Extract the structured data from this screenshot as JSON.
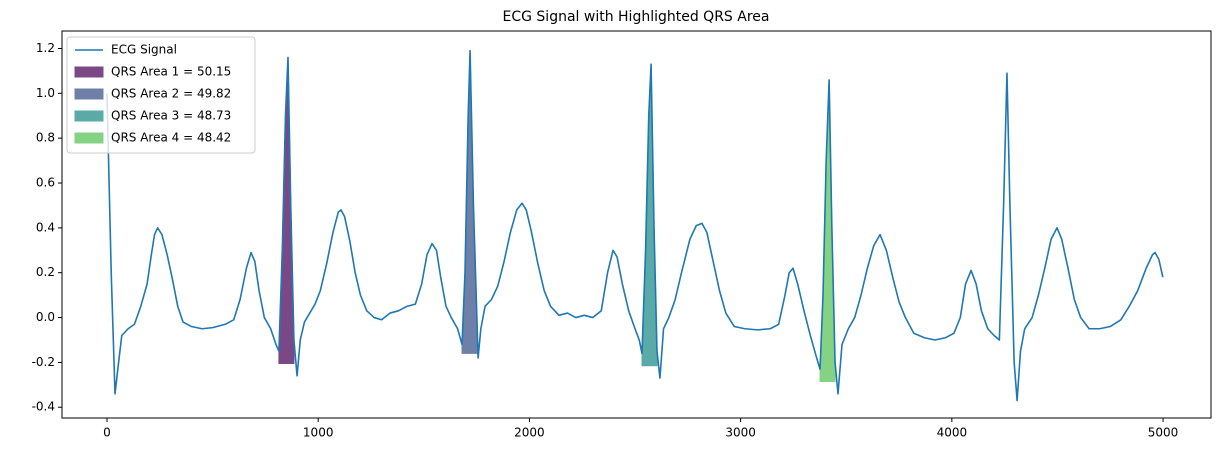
{
  "chart_data": {
    "type": "line",
    "title": "ECG Signal with Highlighted QRS Area",
    "xlim": [
      -213,
      5227
    ],
    "ylim": [
      -0.448,
      1.278
    ],
    "xticks": [
      0,
      1000,
      2000,
      3000,
      4000,
      5000
    ],
    "yticks": [
      -0.4,
      -0.2,
      {
        "value": 0,
        "label": "0.0"
      },
      0.2,
      0.4,
      0.6,
      0.8,
      {
        "value": 1,
        "label": "1.0"
      },
      1.2
    ],
    "grid": false,
    "legend": "upper left",
    "series": [
      {
        "name": "ECG Signal",
        "color": "#1f77b4",
        "x": [
          0,
          20,
          38,
          55,
          70,
          100,
          130,
          160,
          190,
          210,
          225,
          240,
          260,
          285,
          310,
          335,
          360,
          400,
          450,
          500,
          560,
          600,
          630,
          660,
          682,
          700,
          720,
          745,
          775,
          800,
          814,
          830,
          845,
          857,
          870,
          885,
          900,
          915,
          935,
          960,
          985,
          1010,
          1040,
          1070,
          1095,
          1108,
          1125,
          1150,
          1175,
          1200,
          1230,
          1265,
          1300,
          1340,
          1380,
          1420,
          1460,
          1490,
          1515,
          1539,
          1560,
          1580,
          1605,
          1630,
          1660,
          1681,
          1695,
          1710,
          1719,
          1735,
          1757,
          1770,
          1790,
          1820,
          1850,
          1880,
          1910,
          1940,
          1965,
          1985,
          2010,
          2040,
          2070,
          2100,
          2140,
          2180,
          2220,
          2260,
          2300,
          2340,
          2370,
          2396,
          2415,
          2440,
          2470,
          2500,
          2520,
          2533,
          2550,
          2565,
          2576,
          2590,
          2604,
          2618,
          2635,
          2660,
          2690,
          2720,
          2760,
          2790,
          2817,
          2840,
          2870,
          2900,
          2930,
          2970,
          3020,
          3080,
          3140,
          3180,
          3210,
          3230,
          3248,
          3270,
          3300,
          3330,
          3360,
          3376,
          3390,
          3405,
          3419,
          3432,
          3447,
          3461,
          3480,
          3510,
          3540,
          3570,
          3600,
          3630,
          3660,
          3690,
          3720,
          3750,
          3780,
          3820,
          3870,
          3920,
          3970,
          4010,
          4040,
          4065,
          4091,
          4115,
          4140,
          4170,
          4200,
          4225,
          4245,
          4261,
          4275,
          4295,
          4309,
          4325,
          4345,
          4380,
          4410,
          4440,
          4470,
          4498,
          4520,
          4550,
          4580,
          4610,
          4650,
          4700,
          4750,
          4800,
          4840,
          4880,
          4920,
          4950,
          4962,
          4980,
          4999
        ],
        "values": [
          1.0,
          0.2,
          -0.34,
          -0.2,
          -0.08,
          -0.05,
          -0.03,
          0.05,
          0.15,
          0.28,
          0.37,
          0.4,
          0.37,
          0.28,
          0.17,
          0.05,
          -0.02,
          -0.04,
          -0.05,
          -0.045,
          -0.03,
          -0.01,
          0.08,
          0.22,
          0.29,
          0.25,
          0.12,
          0.0,
          -0.05,
          -0.12,
          -0.15,
          0.3,
          0.9,
          1.16,
          0.5,
          -0.1,
          -0.26,
          -0.1,
          -0.02,
          0.02,
          0.06,
          0.12,
          0.24,
          0.38,
          0.47,
          0.48,
          0.45,
          0.34,
          0.2,
          0.1,
          0.03,
          0.0,
          -0.01,
          0.02,
          0.03,
          0.05,
          0.06,
          0.15,
          0.28,
          0.33,
          0.3,
          0.18,
          0.05,
          0.0,
          -0.05,
          -0.12,
          0.2,
          0.9,
          1.19,
          0.5,
          -0.18,
          -0.05,
          0.05,
          0.08,
          0.14,
          0.25,
          0.38,
          0.48,
          0.51,
          0.48,
          0.38,
          0.24,
          0.12,
          0.05,
          0.01,
          0.02,
          0.0,
          0.01,
          0.0,
          0.03,
          0.2,
          0.3,
          0.27,
          0.15,
          0.03,
          -0.05,
          -0.1,
          -0.16,
          0.3,
          0.9,
          1.13,
          0.4,
          -0.15,
          -0.27,
          -0.05,
          0.0,
          0.08,
          0.2,
          0.35,
          0.41,
          0.42,
          0.38,
          0.25,
          0.12,
          0.02,
          -0.04,
          -0.05,
          -0.055,
          -0.05,
          -0.03,
          0.1,
          0.2,
          0.22,
          0.15,
          0.03,
          -0.08,
          -0.18,
          -0.23,
          0.1,
          0.7,
          1.06,
          0.4,
          -0.2,
          -0.34,
          -0.12,
          -0.05,
          0.0,
          0.1,
          0.22,
          0.32,
          0.37,
          0.3,
          0.18,
          0.07,
          0.0,
          -0.07,
          -0.09,
          -0.1,
          -0.09,
          -0.07,
          0.0,
          0.15,
          0.21,
          0.15,
          0.03,
          -0.05,
          -0.08,
          -0.1,
          0.5,
          1.09,
          0.5,
          -0.2,
          -0.37,
          -0.15,
          -0.05,
          0.0,
          0.1,
          0.22,
          0.35,
          0.4,
          0.35,
          0.22,
          0.08,
          0.0,
          -0.05,
          -0.05,
          -0.04,
          -0.01,
          0.05,
          0.12,
          0.22,
          0.28,
          0.29,
          0.26,
          0.18
        ]
      }
    ],
    "areas": [
      {
        "name": "QRS Area 1 = 50.15",
        "color": "#7b4886",
        "x": [
          814,
          830,
          845,
          857,
          870,
          885
        ],
        "values": [
          -0.15,
          0.3,
          0.9,
          1.16,
          0.5,
          -0.1
        ],
        "baseline": -0.205
      },
      {
        "name": "QRS Area 2 = 49.82",
        "color": "#6e80a8",
        "x": [
          1681,
          1695,
          1710,
          1719,
          1735,
          1757
        ],
        "values": [
          -0.12,
          0.2,
          0.9,
          1.19,
          0.5,
          -0.18
        ],
        "baseline": -0.16
      },
      {
        "name": "QRS Area 3 = 48.73",
        "color": "#5aaaa7",
        "x": [
          2533,
          2550,
          2565,
          2576,
          2590,
          2604
        ],
        "values": [
          -0.16,
          0.3,
          0.9,
          1.13,
          0.4,
          -0.15
        ],
        "baseline": -0.215
      },
      {
        "name": "QRS Area 4 = 48.42",
        "color": "#84d385",
        "x": [
          3376,
          3390,
          3405,
          3419,
          3432,
          3447
        ],
        "values": [
          -0.23,
          0.1,
          0.7,
          1.06,
          0.4,
          -0.2
        ],
        "baseline": -0.285
      }
    ]
  }
}
